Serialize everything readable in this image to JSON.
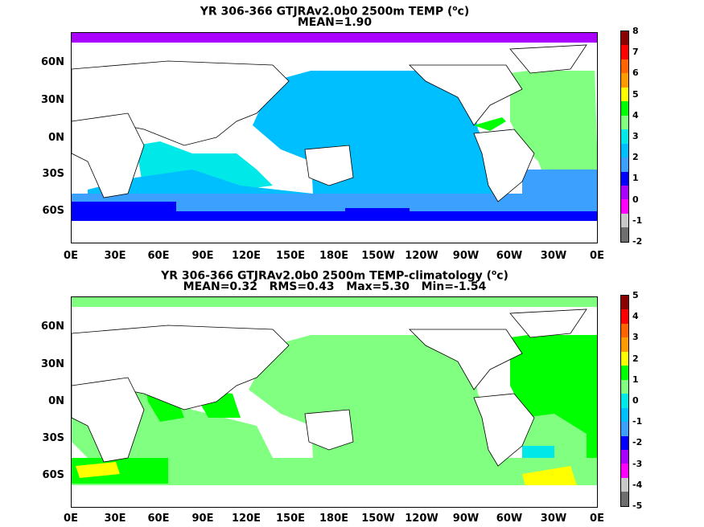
{
  "panels": [
    {
      "title1": "YR 306-366 GTJRAv2.0b0 2500m TEMP (",
      "title_sup": "o",
      "title1_end": "c)",
      "title2": "MEAN=1.90",
      "lat_labels": [
        "60N",
        "30N",
        "0N",
        "30S",
        "60S"
      ],
      "lon_labels": [
        "0E",
        "30E",
        "60E",
        "90E",
        "120E",
        "150E",
        "180E",
        "150W",
        "120W",
        "90W",
        "60W",
        "30W",
        "0E"
      ],
      "colorbar_ticks": [
        "8",
        "7",
        "6",
        "5",
        "4",
        "3",
        "2",
        "1",
        "0",
        "-1",
        "-2"
      ],
      "colorbar_colors": [
        "#8b0000",
        "#ff0000",
        "#ff6400",
        "#ff9b00",
        "#ffff00",
        "#00ff00",
        "#80ff80",
        "#00e8e8",
        "#00bfff",
        "#3ca0ff",
        "#0000ff",
        "#aa00ff",
        "#ff00ff",
        "#c8c8c8",
        "#6e6e6e"
      ]
    },
    {
      "title1": "YR 306-366 GTJRAv2.0b0 2500m TEMP-climatology (",
      "title_sup": "o",
      "title1_end": "c)",
      "title2": "MEAN=0.32   RMS=0.43   Max=5.30   Min=-1.54",
      "lat_labels": [
        "60N",
        "30N",
        "0N",
        "30S",
        "60S"
      ],
      "lon_labels": [
        "0E",
        "30E",
        "60E",
        "90E",
        "120E",
        "150E",
        "180E",
        "150W",
        "120W",
        "90W",
        "60W",
        "30W",
        "0E"
      ],
      "colorbar_ticks": [
        "5",
        "4",
        "3",
        "2",
        "1",
        "0",
        "-1",
        "-2",
        "-3",
        "-4",
        "-5"
      ],
      "colorbar_colors": [
        "#8b0000",
        "#ff0000",
        "#ff6400",
        "#ff9b00",
        "#ffff00",
        "#00ff00",
        "#80ff80",
        "#00e8e8",
        "#00bfff",
        "#3ca0ff",
        "#0000ff",
        "#aa00ff",
        "#ff00ff",
        "#c8c8c8",
        "#6e6e6e"
      ]
    }
  ]
}
